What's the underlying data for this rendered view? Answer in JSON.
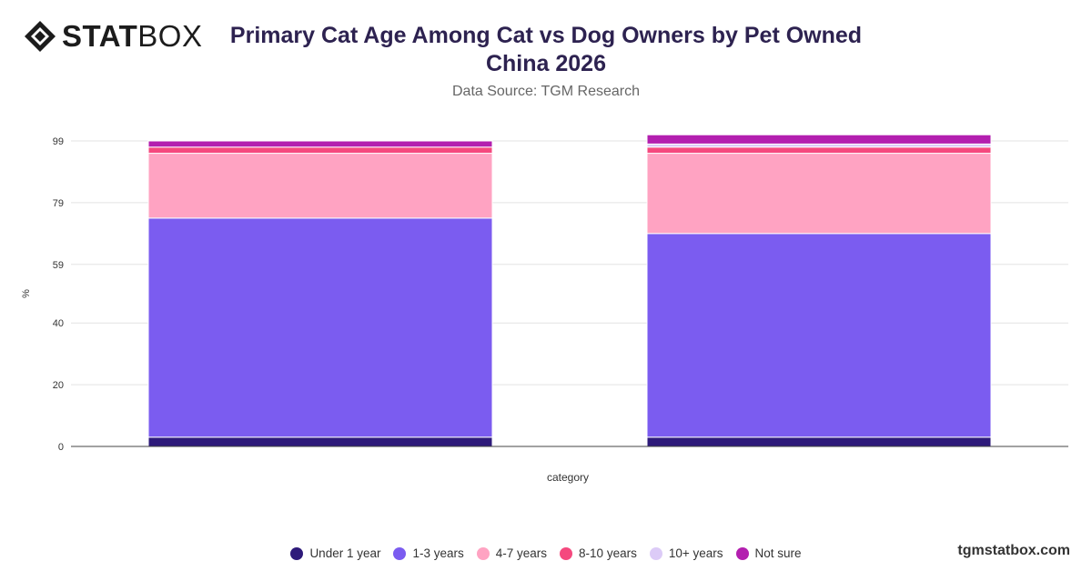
{
  "brand": {
    "logo_bold": "STAT",
    "logo_light": "BOX",
    "watermark": "tgmstatbox.com"
  },
  "chart_data": {
    "type": "bar",
    "stacked": true,
    "title": "Primary Cat Age Among Cat vs Dog Owners by Pet Owned China 2026",
    "subtitle": "Data Source: TGM Research",
    "xlabel": "category",
    "ylabel": "%",
    "ylim": [
      0,
      100
    ],
    "yticks": [
      0,
      20,
      40,
      59,
      79,
      99
    ],
    "grid": true,
    "legend_position": "bottom",
    "categories": [
      "",
      ""
    ],
    "series": [
      {
        "name": "Under 1 year",
        "color": "#2e1a7a",
        "values": [
          3,
          3
        ]
      },
      {
        "name": "1-3 years",
        "color": "#7b5cf0",
        "values": [
          71,
          66
        ]
      },
      {
        "name": "4-7 years",
        "color": "#ffa3c2",
        "values": [
          21,
          26
        ]
      },
      {
        "name": "8-10 years",
        "color": "#f5497e",
        "values": [
          2,
          2
        ]
      },
      {
        "name": "10+ years",
        "color": "#dccbf7",
        "values": [
          0,
          1
        ]
      },
      {
        "name": "Not sure",
        "color": "#b31faf",
        "values": [
          2,
          3
        ]
      }
    ]
  }
}
